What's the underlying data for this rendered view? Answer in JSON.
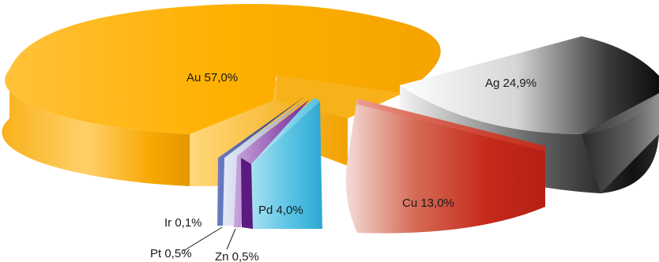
{
  "chart_data": {
    "type": "pie",
    "style": "3d-exploded",
    "slices": [
      {
        "label": "Au",
        "value": 57.0,
        "text": "Au 57,0%",
        "color": "#f5a800"
      },
      {
        "label": "Ag",
        "value": 24.9,
        "text": "Ag 24,9%",
        "color": "#5a5a5a"
      },
      {
        "label": "Cu",
        "value": 13.0,
        "text": "Cu 13,0%",
        "color": "#c8281c"
      },
      {
        "label": "Pd",
        "value": 4.0,
        "text": "Pd 4,0%",
        "color": "#3fb3d8"
      },
      {
        "label": "Zn",
        "value": 0.5,
        "text": "Zn 0,5%",
        "color": "#7a2ea0"
      },
      {
        "label": "Pt",
        "value": 0.5,
        "text": "Pt 0,5%",
        "color": "#9aa8d0"
      },
      {
        "label": "Ir",
        "value": 0.1,
        "text": "Ir 0,1%",
        "color": "#2e3f8c"
      }
    ]
  }
}
